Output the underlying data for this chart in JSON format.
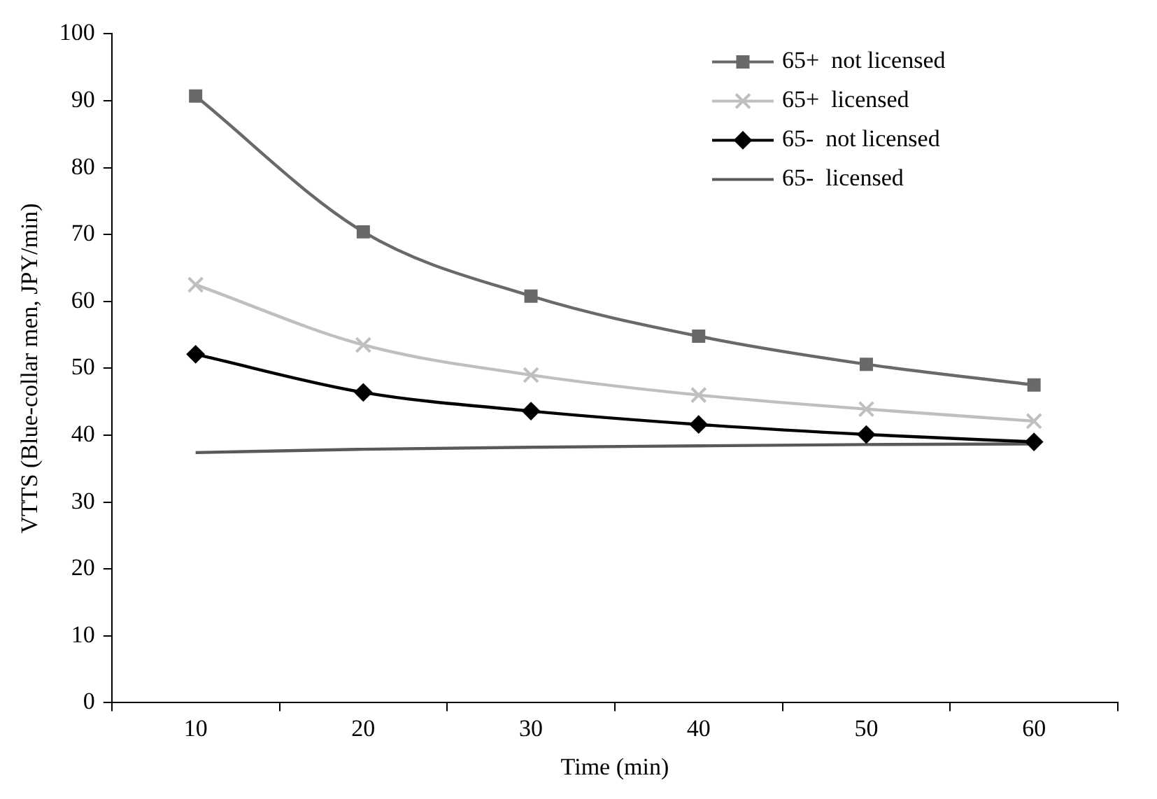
{
  "chart_data": {
    "type": "line",
    "xlabel": "Time (min)",
    "ylabel": "VTTS (Blue-collar men, JPY/min)",
    "categories": [
      "10",
      "20",
      "30",
      "40",
      "50",
      "60"
    ],
    "ylim": [
      0,
      100
    ],
    "yticks": [
      0,
      10,
      20,
      30,
      40,
      50,
      60,
      70,
      80,
      90,
      100
    ],
    "grid": false,
    "legend": "top right",
    "series": [
      {
        "name": "65+  not licensed",
        "color": "#696969",
        "marker": "square",
        "values": [
          90.7,
          70.4,
          60.8,
          54.8,
          50.6,
          47.5
        ]
      },
      {
        "name": "65+  licensed",
        "color": "#bfbfbf",
        "marker": "cross",
        "values": [
          62.5,
          53.5,
          49.0,
          46.0,
          43.9,
          42.1
        ]
      },
      {
        "name": "65-  not licensed",
        "color": "#000000",
        "marker": "diamond",
        "values": [
          52.1,
          46.4,
          43.6,
          41.6,
          40.1,
          39.0
        ]
      },
      {
        "name": "65-  licensed",
        "color": "#595959",
        "marker": "none",
        "values": [
          37.4,
          37.9,
          38.2,
          38.4,
          38.6,
          38.7
        ]
      }
    ]
  }
}
